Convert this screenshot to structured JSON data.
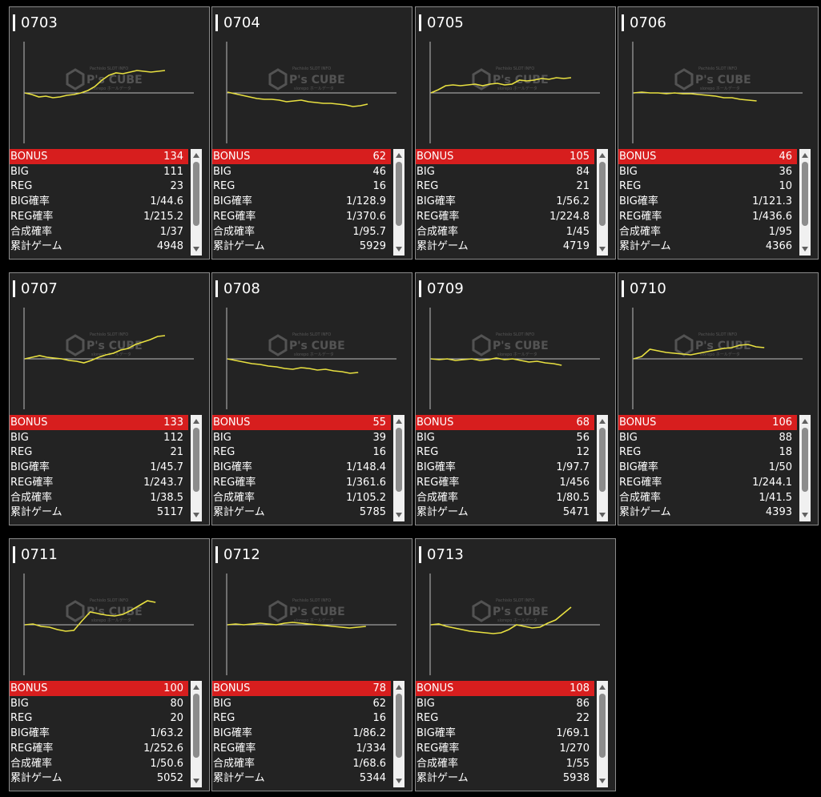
{
  "labels": {
    "bonus": "BONUS",
    "big": "BIG",
    "reg": "REG",
    "big_rate": "BIG確率",
    "reg_rate": "REG確率",
    "total_rate": "合成確率",
    "games": "累計ゲーム"
  },
  "watermark": {
    "small": "Pachislo SLOT INFO",
    "brand": "P's CUBE",
    "sub": "slorepo ホールデータ"
  },
  "colors": {
    "line": "#e8e040",
    "bonus_bg": "#d71e1e",
    "card_bg": "#232323"
  },
  "machines": [
    {
      "id": "0703",
      "bonus": "134",
      "big": "111",
      "reg": "23",
      "big_rate": "1/44.6",
      "reg_rate": "1/215.2",
      "total_rate": "1/37",
      "games": "4948",
      "trend": [
        0,
        -2,
        -5,
        -4,
        -6,
        -5,
        -3,
        -2,
        0,
        3,
        8,
        16,
        22,
        25,
        24,
        26,
        28,
        27,
        26,
        27,
        28
      ]
    },
    {
      "id": "0704",
      "bonus": "62",
      "big": "46",
      "reg": "16",
      "big_rate": "1/128.9",
      "reg_rate": "1/370.6",
      "total_rate": "1/95.7",
      "games": "5929",
      "trend": [
        1,
        -1,
        -3,
        -5,
        -7,
        -8,
        -8,
        -9,
        -11,
        -10,
        -9,
        -11,
        -12,
        -13,
        -13,
        -14,
        -15,
        -17,
        -16,
        -14
      ]
    },
    {
      "id": "0705",
      "bonus": "105",
      "big": "84",
      "reg": "21",
      "big_rate": "1/56.2",
      "reg_rate": "1/224.8",
      "total_rate": "1/45",
      "games": "4719",
      "trend": [
        0,
        4,
        9,
        10,
        9,
        10,
        11,
        9,
        11,
        12,
        10,
        11,
        16,
        15,
        16,
        18,
        17,
        19,
        18,
        19
      ]
    },
    {
      "id": "0706",
      "bonus": "46",
      "big": "36",
      "reg": "10",
      "big_rate": "1/121.3",
      "reg_rate": "1/436.6",
      "total_rate": "1/95",
      "games": "4366",
      "trend": [
        0,
        1,
        0,
        0,
        -1,
        0,
        -1,
        -1,
        -2,
        -3,
        -4,
        -6,
        -6,
        -8,
        -9,
        -10
      ]
    },
    {
      "id": "0707",
      "bonus": "133",
      "big": "112",
      "reg": "21",
      "big_rate": "1/45.7",
      "reg_rate": "1/243.7",
      "total_rate": "1/38.5",
      "games": "5117",
      "trend": [
        0,
        2,
        4,
        2,
        1,
        0,
        -2,
        -3,
        -5,
        -2,
        2,
        5,
        7,
        11,
        13,
        18,
        21,
        24,
        28,
        29
      ]
    },
    {
      "id": "0708",
      "bonus": "55",
      "big": "39",
      "reg": "16",
      "big_rate": "1/148.4",
      "reg_rate": "1/361.6",
      "total_rate": "1/105.2",
      "games": "5785",
      "trend": [
        0,
        -2,
        -4,
        -6,
        -7,
        -9,
        -10,
        -12,
        -13,
        -11,
        -12,
        -14,
        -13,
        -15,
        -16,
        -18,
        -17
      ]
    },
    {
      "id": "0709",
      "bonus": "68",
      "big": "56",
      "reg": "12",
      "big_rate": "1/97.7",
      "reg_rate": "1/456",
      "total_rate": "1/80.5",
      "games": "5471",
      "trend": [
        0,
        -1,
        0,
        -2,
        -1,
        0,
        -2,
        -1,
        1,
        -1,
        0,
        -2,
        -4,
        -3,
        -5,
        -6,
        -8
      ]
    },
    {
      "id": "0710",
      "bonus": "106",
      "big": "88",
      "reg": "18",
      "big_rate": "1/50",
      "reg_rate": "1/244.1",
      "total_rate": "1/41.5",
      "games": "4393",
      "trend": [
        0,
        3,
        12,
        10,
        8,
        7,
        6,
        5,
        7,
        9,
        11,
        13,
        14,
        17,
        18,
        15,
        14
      ]
    },
    {
      "id": "0711",
      "bonus": "100",
      "big": "80",
      "reg": "20",
      "big_rate": "1/63.2",
      "reg_rate": "1/252.6",
      "total_rate": "1/50.6",
      "games": "5052",
      "trend": [
        0,
        1,
        -2,
        -3,
        -6,
        -8,
        -7,
        5,
        16,
        14,
        12,
        11,
        13,
        18,
        24,
        30,
        28
      ]
    },
    {
      "id": "0712",
      "bonus": "78",
      "big": "62",
      "reg": "16",
      "big_rate": "1/86.2",
      "reg_rate": "1/334",
      "total_rate": "1/68.6",
      "games": "5344",
      "trend": [
        0,
        1,
        0,
        1,
        2,
        1,
        0,
        2,
        3,
        2,
        1,
        0,
        -1,
        -2,
        -3,
        -4,
        -3,
        -2
      ]
    },
    {
      "id": "0713",
      "bonus": "108",
      "big": "86",
      "reg": "22",
      "big_rate": "1/69.1",
      "reg_rate": "1/270",
      "total_rate": "1/55",
      "games": "5938",
      "trend": [
        0,
        1,
        -2,
        -4,
        -6,
        -8,
        -9,
        -10,
        -11,
        -10,
        -6,
        0,
        -2,
        -4,
        -3,
        2,
        6,
        14,
        22
      ]
    }
  ]
}
